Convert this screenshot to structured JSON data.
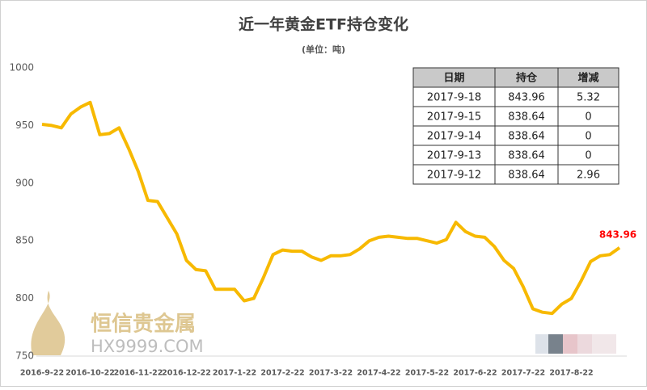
{
  "chart_data": {
    "type": "line",
    "title": "近一年黄金ETF持仓变化",
    "subtitle": "(单位：吨)",
    "categories": [
      "2016-9-22",
      null,
      null,
      null,
      null,
      "2016-10-22",
      null,
      null,
      null,
      null,
      "2016-11-22",
      null,
      null,
      null,
      null,
      "2016-12-22",
      null,
      null,
      null,
      null,
      "2017-1-22",
      null,
      null,
      null,
      null,
      "2017-2-22",
      null,
      null,
      null,
      null,
      "2017-3-22",
      null,
      null,
      null,
      null,
      "2017-4-22",
      null,
      null,
      null,
      null,
      "2017-5-22",
      null,
      null,
      null,
      null,
      "2017-6-22",
      null,
      null,
      null,
      null,
      "2017-7-22",
      null,
      null,
      null,
      null,
      "2017-8-22",
      null,
      null,
      null,
      null,
      null
    ],
    "series": [
      {
        "color": "#f7b900",
        "values": [
          951,
          950,
          948,
          960,
          966,
          970,
          942,
          943,
          948,
          930,
          910,
          885,
          884,
          870,
          856,
          833,
          825,
          824,
          808,
          808,
          808,
          798,
          800,
          818,
          838,
          842,
          841,
          841,
          836,
          833,
          837,
          837,
          838,
          843,
          850,
          853,
          854,
          853,
          852,
          852,
          850,
          848,
          851,
          866,
          858,
          854,
          853,
          845,
          833,
          826,
          810,
          791,
          788,
          787,
          795,
          800,
          815,
          832,
          837,
          838,
          843.96
        ]
      }
    ],
    "ylim": [
      750,
      1000
    ],
    "yticks": [
      750,
      800,
      850,
      900,
      950,
      1000
    ],
    "label_color": "#ff0000",
    "table": {
      "columns": [
        "日期",
        "持仓",
        "增减"
      ],
      "rows": [
        [
          "2017-9-18",
          843.96,
          5.32
        ],
        [
          "2017-9-15",
          838.64,
          0
        ],
        [
          "2017-9-14",
          838.64,
          0
        ],
        [
          "2017-9-13",
          838.64,
          0
        ],
        [
          "2017-9-12",
          838.64,
          2.96
        ]
      ]
    },
    "watermark": {
      "name": "恒信贵金属",
      "site": "HX9999.COM"
    }
  }
}
